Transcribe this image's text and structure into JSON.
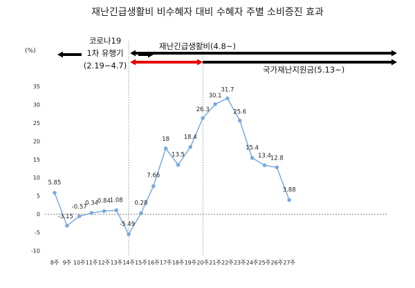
{
  "chart_data": {
    "type": "line",
    "title": "재난긴급생활비 비수혜자 대비 수혜자 주별 소비증진 효과",
    "unit": "(%)",
    "categories": [
      "8주",
      "9주",
      "10주",
      "11주",
      "12주",
      "13주",
      "14주",
      "15주",
      "16주",
      "17주",
      "18주",
      "19주",
      "20주",
      "21주",
      "22주",
      "23주",
      "24주",
      "25주",
      "26주",
      "27주"
    ],
    "values": [
      5.85,
      -3.15,
      -0.57,
      0.34,
      0.84,
      1.08,
      -5.49,
      0.28,
      7.66,
      18,
      13.5,
      18.4,
      26.3,
      30.1,
      31.7,
      25.6,
      15.4,
      13.4,
      12.8,
      3.88
    ],
    "data_labels": [
      "5.85",
      "-3.15",
      "-0.57",
      "0.34",
      "0.84",
      "1.08",
      "-5.49",
      "0.28",
      "7.66",
      "18",
      "13.5",
      "18.4",
      "26.3",
      "30.1",
      "31.7",
      "25.6",
      "15.4",
      "13.4",
      "12.8",
      "3.88"
    ],
    "ylim": [
      -10,
      35
    ],
    "yticks": [
      -10,
      -5,
      0,
      5,
      10,
      15,
      20,
      25,
      30,
      35
    ],
    "grid": false,
    "zero_line": "dashed",
    "series_color": "#7BAAE0",
    "annotations": {
      "corona1": {
        "line1": "코로나19",
        "line2": "1차 유행기",
        "line3": "(2.19~4.7)"
      },
      "relief_fund": "재난긴급생활비(4.8~)",
      "national_fund": "국가재난지원금(5.13~)"
    },
    "arrow_colors": {
      "black": "#000000",
      "red": "#E60000"
    },
    "period_lines": [
      "14주",
      "20주"
    ]
  }
}
